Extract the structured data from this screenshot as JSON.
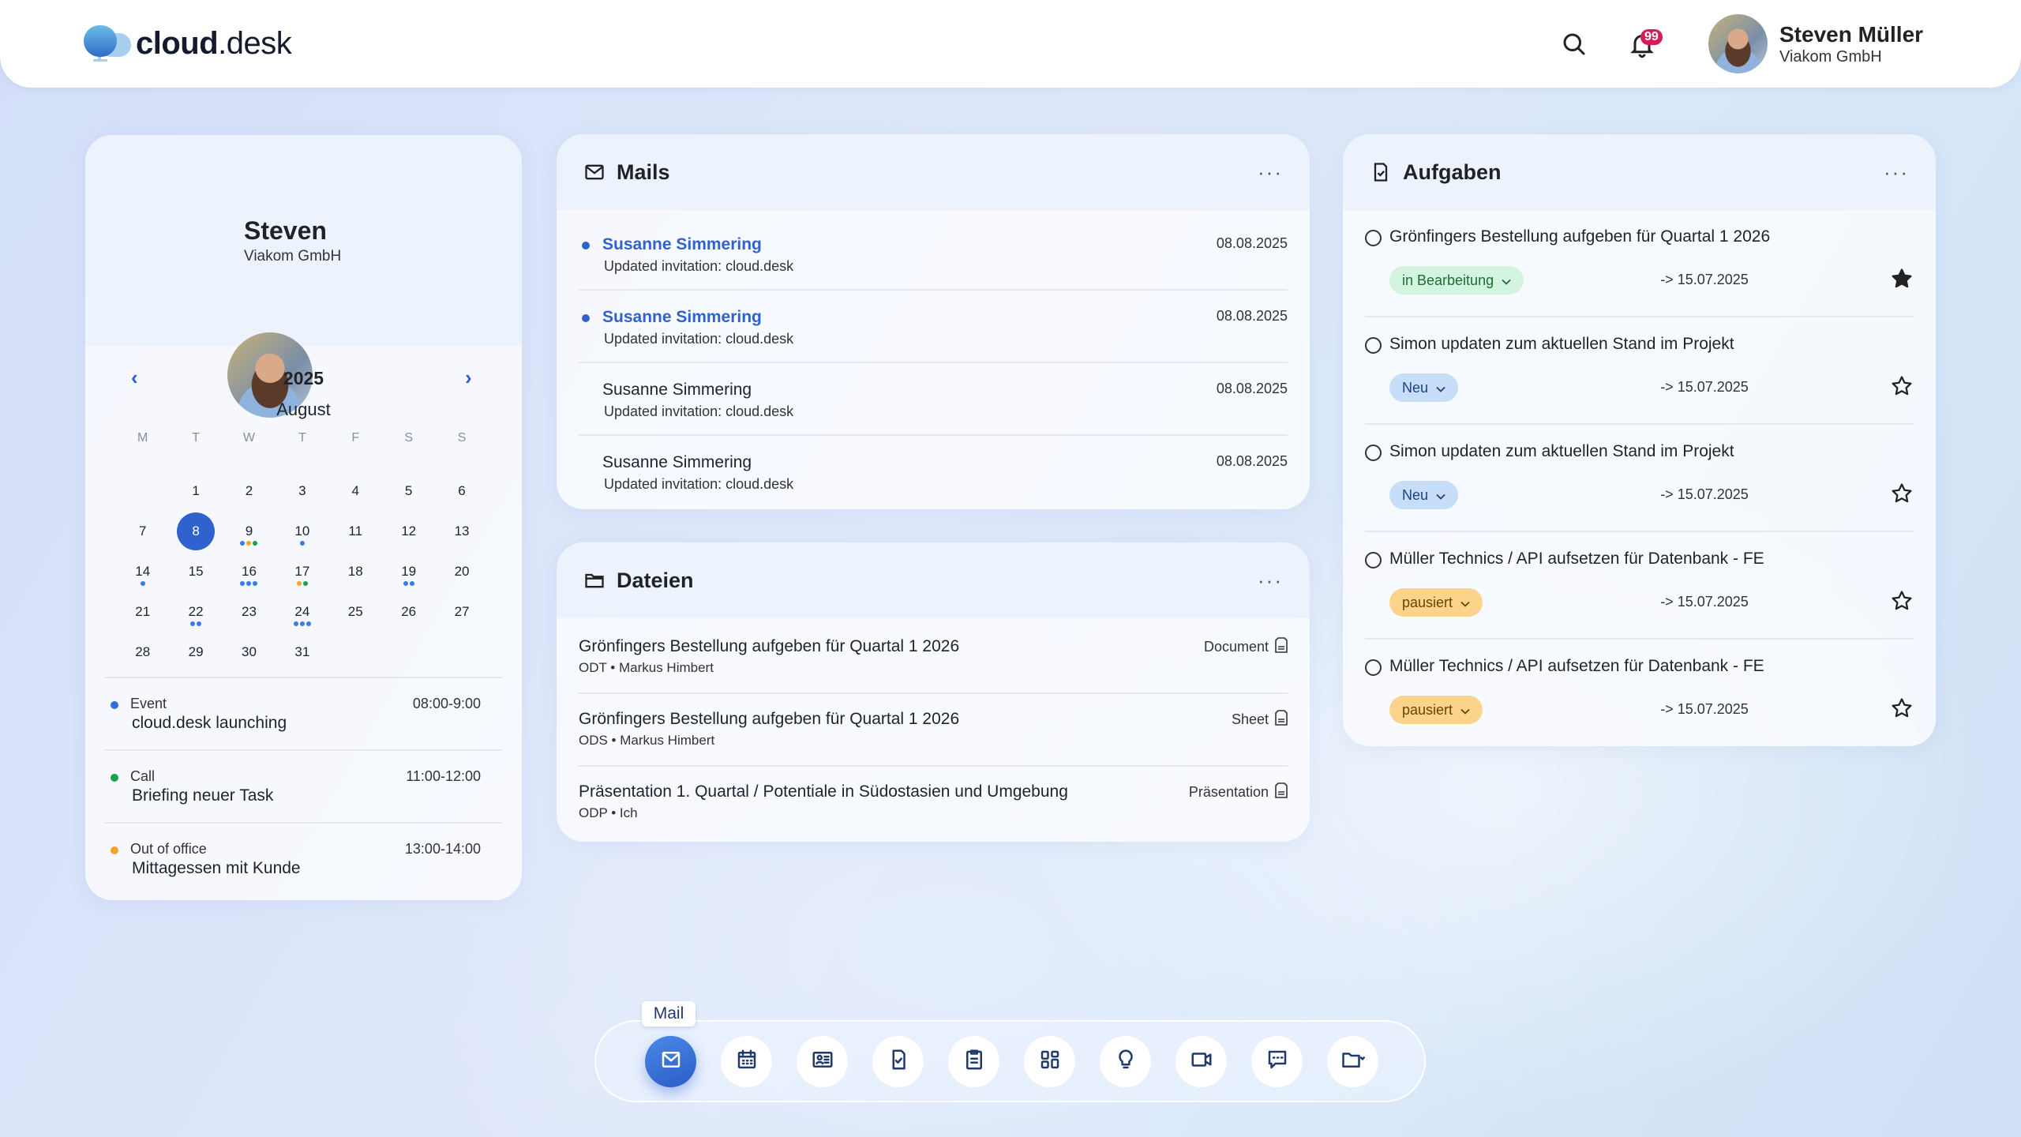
{
  "app": {
    "logo_bold": "cloud",
    "logo_light": ".desk"
  },
  "header": {
    "notification_count": "99",
    "user_name": "Steven Müller",
    "user_company": "Viakom GmbH",
    "icons": [
      "search-icon",
      "bell-icon"
    ]
  },
  "profile": {
    "name": "Steven",
    "company": "Viakom GmbH"
  },
  "calendar": {
    "year": "2025",
    "month": "August",
    "prev": "‹",
    "next": "›",
    "weekdays": [
      "M",
      "T",
      "W",
      "T",
      "F",
      "S",
      "S"
    ],
    "leading_blanks": 1,
    "selected_day": "8",
    "days": [
      {
        "d": "1",
        "dots": []
      },
      {
        "d": "2",
        "dots": []
      },
      {
        "d": "3",
        "dots": []
      },
      {
        "d": "4",
        "dots": []
      },
      {
        "d": "5",
        "dots": []
      },
      {
        "d": "6",
        "dots": []
      },
      {
        "d": "7",
        "dots": []
      },
      {
        "d": "8",
        "dots": []
      },
      {
        "d": "9",
        "dots": [
          "#3b7be8",
          "#f5a524",
          "#16a34a"
        ]
      },
      {
        "d": "10",
        "dots": [
          "#3b7be8"
        ]
      },
      {
        "d": "11",
        "dots": []
      },
      {
        "d": "12",
        "dots": []
      },
      {
        "d": "13",
        "dots": []
      },
      {
        "d": "14",
        "dots": [
          "#3b7be8"
        ]
      },
      {
        "d": "15",
        "dots": []
      },
      {
        "d": "16",
        "dots": [
          "#3b7be8",
          "#3b7be8",
          "#3b7be8"
        ]
      },
      {
        "d": "17",
        "dots": [
          "#f5a524",
          "#16a34a"
        ]
      },
      {
        "d": "18",
        "dots": []
      },
      {
        "d": "19",
        "dots": [
          "#3b7be8",
          "#3b7be8"
        ]
      },
      {
        "d": "20",
        "dots": []
      },
      {
        "d": "21",
        "dots": []
      },
      {
        "d": "22",
        "dots": [
          "#3b7be8",
          "#3b7be8"
        ]
      },
      {
        "d": "23",
        "dots": []
      },
      {
        "d": "24",
        "dots": [
          "#3b7be8",
          "#3b7be8",
          "#3b7be8"
        ]
      },
      {
        "d": "25",
        "dots": []
      },
      {
        "d": "26",
        "dots": []
      },
      {
        "d": "27",
        "dots": []
      },
      {
        "d": "28",
        "dots": []
      },
      {
        "d": "29",
        "dots": []
      },
      {
        "d": "30",
        "dots": []
      },
      {
        "d": "31",
        "dots": []
      }
    ],
    "events": [
      {
        "type": "Event",
        "title": "cloud.desk launching",
        "time": "08:00-9:00",
        "color": "#2f6fe0"
      },
      {
        "type": "Call",
        "title": "Briefing neuer Task",
        "time": "11:00-12:00",
        "color": "#16a34a"
      },
      {
        "type": "Out of office",
        "title": "Mittagessen mit Kunde",
        "time": "13:00-14:00",
        "color": "#f5a524"
      }
    ]
  },
  "mails": {
    "title": "Mails",
    "more": "···",
    "items": [
      {
        "from": "Susanne Simmering",
        "subject": "Updated invitation: cloud.desk",
        "date": "08.08.2025",
        "unread": true
      },
      {
        "from": "Susanne Simmering",
        "subject": "Updated invitation: cloud.desk",
        "date": "08.08.2025",
        "unread": true
      },
      {
        "from": "Susanne Simmering",
        "subject": "Updated invitation: cloud.desk",
        "date": "08.08.2025",
        "unread": false
      },
      {
        "from": "Susanne Simmering",
        "subject": "Updated invitation: cloud.desk",
        "date": "08.08.2025",
        "unread": false
      }
    ]
  },
  "files": {
    "title": "Dateien",
    "more": "···",
    "items": [
      {
        "name": "Grönfingers Bestellung aufgeben für Quartal 1 2026",
        "meta": "ODT • Markus Himbert",
        "type": "Document",
        "icon": "doc-file-icon"
      },
      {
        "name": "Grönfingers Bestellung aufgeben für Quartal 1 2026",
        "meta": "ODS • Markus Himbert",
        "type": "Sheet",
        "icon": "sheet-file-icon"
      },
      {
        "name": "Präsentation 1. Quartal / Potentiale in Südostasien und Umgebung",
        "meta": "ODP • Ich",
        "type": "Präsentation",
        "icon": "ppt-file-icon"
      }
    ]
  },
  "tasks": {
    "title": "Aufgaben",
    "more": "···",
    "items": [
      {
        "title": "Grönfingers Bestellung aufgeben für Quartal 1 2026",
        "status": "in Bearbeitung",
        "status_bg": "#d3f5df",
        "status_fg": "#1f6b3a",
        "due": "-> 15.07.2025",
        "starred": true
      },
      {
        "title": "Simon updaten zum aktuellen Stand im Projekt",
        "status": "Neu",
        "status_bg": "#c6def8",
        "status_fg": "#1f3f80",
        "due": "-> 15.07.2025",
        "starred": false
      },
      {
        "title": "Simon updaten zum aktuellen Stand im Projekt",
        "status": "Neu",
        "status_bg": "#c6def8",
        "status_fg": "#1f3f80",
        "due": "-> 15.07.2025",
        "starred": false
      },
      {
        "title": "Müller Technics / API aufsetzen für Datenbank - FE",
        "status": "pausiert",
        "status_bg": "#fbd38a",
        "status_fg": "#6b4300",
        "due": "-> 15.07.2025",
        "starred": false
      },
      {
        "title": "Müller Technics / API aufsetzen für Datenbank - FE",
        "status": "pausiert",
        "status_bg": "#fbd38a",
        "status_fg": "#6b4300",
        "due": "-> 15.07.2025",
        "starred": false
      }
    ]
  },
  "dock": {
    "tooltip": "Mail",
    "active": "mail",
    "items": [
      "mail",
      "calendar",
      "contacts",
      "tasks",
      "notes",
      "apps",
      "ideas",
      "video",
      "chat",
      "files"
    ]
  },
  "colors": {
    "accent": "#2f62cc",
    "badge": "#d21d56"
  }
}
